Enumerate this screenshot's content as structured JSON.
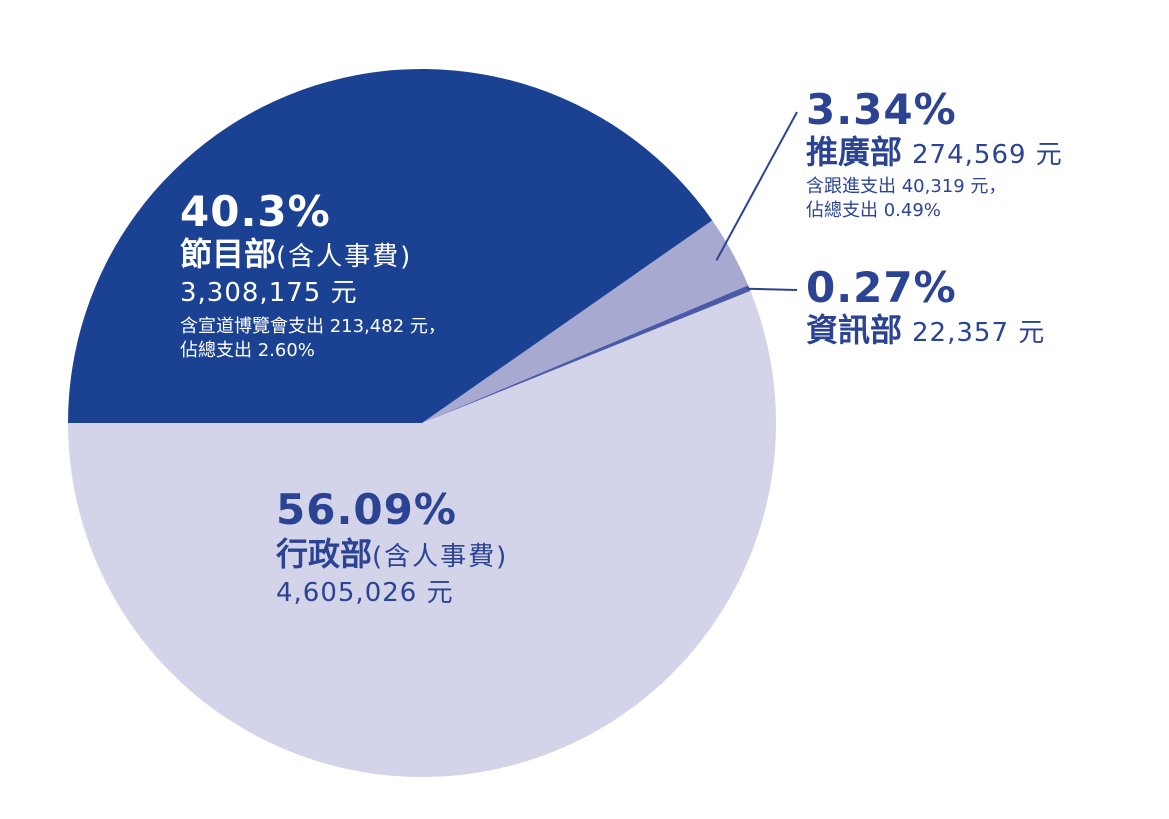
{
  "chart_data": {
    "type": "pie",
    "colors": {
      "programs": "#1b4292",
      "promotion": "#a8a9d1",
      "it": "#4a5aa8",
      "admin": "#d3d4e9",
      "label_dark": "#2b4393",
      "label_light": "#ffffff"
    },
    "slices": [
      {
        "key": "admin",
        "percent_label": "56.09%",
        "value": 56.09,
        "name": "行政部",
        "paren": "(含人事費)",
        "amount": "4,605,026 元",
        "notes": []
      },
      {
        "key": "it",
        "percent_label": "0.27%",
        "value": 0.27,
        "name": "資訊部",
        "paren": "",
        "amount": "22,357 元",
        "notes": []
      },
      {
        "key": "promotion",
        "percent_label": "3.34%",
        "value": 3.34,
        "name": "推廣部",
        "paren": "",
        "amount": "274,569 元",
        "notes": [
          "含跟進支出 40,319 元，",
          "佔總支出 0.49%"
        ]
      },
      {
        "key": "programs",
        "percent_label": "40.3%",
        "value": 40.3,
        "name": "節目部",
        "paren": "(含人事費)",
        "amount": "3,308,175 元",
        "notes": [
          "含宣道博覽會支出 213,482 元，",
          "佔總支出 2.60%"
        ]
      }
    ]
  }
}
